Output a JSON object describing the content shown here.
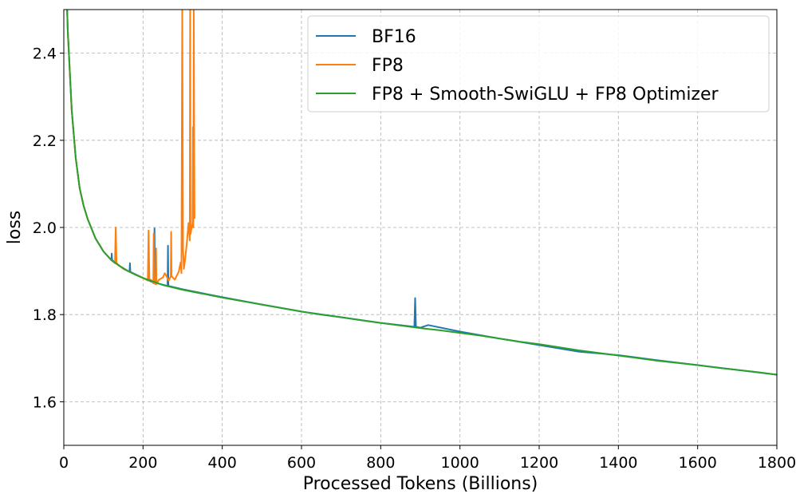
{
  "chart_data": {
    "type": "line",
    "xlabel": "Processed Tokens (Billions)",
    "ylabel": "loss",
    "xlim": [
      0,
      1800
    ],
    "ylim": [
      1.5,
      2.5
    ],
    "xticks": [
      0,
      200,
      400,
      600,
      800,
      1000,
      1200,
      1400,
      1600,
      1800
    ],
    "xtick_labels": [
      "0",
      "200",
      "400",
      "600",
      "800",
      "1000",
      "1200",
      "1400",
      "1600",
      "1800"
    ],
    "yticks": [
      1.6,
      1.8,
      2.0,
      2.2,
      2.4
    ],
    "ytick_labels": [
      "1.6",
      "1.8",
      "2.0",
      "2.2",
      "2.4"
    ],
    "grid": true,
    "legend_position": "top-right",
    "series": [
      {
        "name": "BF16",
        "color": "#1f77b4",
        "x": [
          5,
          10,
          20,
          30,
          40,
          50,
          60,
          80,
          100,
          120,
          121,
          122,
          140,
          166,
          167,
          168,
          200,
          228,
          229,
          230,
          262,
          263,
          264,
          300,
          400,
          500,
          600,
          700,
          800,
          885,
          887,
          889,
          900,
          920,
          1000,
          1100,
          1200,
          1300,
          1400,
          1500,
          1600,
          1700,
          1800
        ],
        "y": [
          2.6,
          2.45,
          2.27,
          2.16,
          2.09,
          2.05,
          2.02,
          1.975,
          1.945,
          1.925,
          1.94,
          1.925,
          1.912,
          1.898,
          1.918,
          1.898,
          1.884,
          1.873,
          1.998,
          1.873,
          1.866,
          1.958,
          1.866,
          1.858,
          1.84,
          1.823,
          1.807,
          1.794,
          1.781,
          1.772,
          1.838,
          1.772,
          1.77,
          1.776,
          1.761,
          1.745,
          1.73,
          1.715,
          1.707,
          1.695,
          1.684,
          1.673,
          1.662
        ]
      },
      {
        "name": "FP8",
        "color": "#ff7f0e",
        "x": [
          5,
          10,
          20,
          30,
          40,
          50,
          60,
          80,
          100,
          120,
          129,
          131,
          133,
          150,
          180,
          200,
          212,
          214,
          216,
          220,
          226,
          227,
          228,
          232,
          233,
          234,
          240,
          250,
          255,
          265,
          270,
          271,
          272,
          280,
          290,
          295,
          297,
          299,
          300,
          301,
          303,
          306,
          310,
          315,
          318,
          319,
          320,
          325,
          326,
          327,
          328,
          329,
          330
        ],
        "y": [
          2.6,
          2.45,
          2.27,
          2.16,
          2.09,
          2.05,
          2.02,
          1.975,
          1.945,
          1.925,
          1.918,
          2.0,
          1.918,
          1.905,
          1.892,
          1.884,
          1.878,
          1.993,
          1.878,
          1.88,
          1.872,
          1.986,
          1.872,
          1.87,
          1.952,
          1.87,
          1.88,
          1.885,
          1.895,
          1.878,
          1.888,
          1.99,
          1.888,
          1.88,
          1.898,
          1.92,
          1.895,
          2.51,
          2.24,
          1.95,
          1.905,
          1.925,
          1.96,
          2.01,
          1.97,
          2.51,
          1.985,
          2.01,
          2.23,
          2.0,
          2.5,
          2.235,
          2.02
        ]
      },
      {
        "name": "FP8 + Smooth-SwiGLU + FP8 Optimizer",
        "color": "#2ca02c",
        "x": [
          5,
          10,
          20,
          30,
          40,
          50,
          60,
          80,
          100,
          120,
          140,
          160,
          180,
          200,
          250,
          300,
          350,
          400,
          450,
          500,
          550,
          600,
          650,
          700,
          750,
          800,
          850,
          900,
          950,
          1000,
          1050,
          1100,
          1150,
          1200,
          1250,
          1300,
          1350,
          1400,
          1450,
          1500,
          1550,
          1600,
          1650,
          1700,
          1750,
          1800
        ],
        "y": [
          2.6,
          2.45,
          2.27,
          2.16,
          2.09,
          2.05,
          2.02,
          1.975,
          1.945,
          1.925,
          1.912,
          1.901,
          1.892,
          1.884,
          1.868,
          1.857,
          1.848,
          1.839,
          1.831,
          1.823,
          1.815,
          1.807,
          1.8,
          1.794,
          1.787,
          1.781,
          1.775,
          1.769,
          1.764,
          1.758,
          1.752,
          1.745,
          1.738,
          1.732,
          1.725,
          1.718,
          1.712,
          1.706,
          1.7,
          1.694,
          1.689,
          1.684,
          1.678,
          1.673,
          1.668,
          1.662
        ]
      }
    ]
  }
}
